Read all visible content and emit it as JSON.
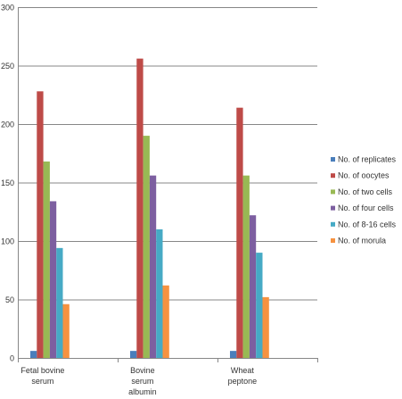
{
  "chart_data": {
    "type": "bar",
    "categories": [
      "Fetal bovine serum",
      "Bovine serum albumin",
      "Wheat peptone"
    ],
    "category_lines": [
      [
        "Fetal bovine",
        "serum"
      ],
      [
        "Bovine",
        "serum",
        "albumin"
      ],
      [
        "Wheat",
        "peptone"
      ]
    ],
    "series": [
      {
        "name": "No. of replicates",
        "color": "#4a7ebb",
        "values": [
          6,
          6,
          6
        ]
      },
      {
        "name": "No. of oocytes",
        "color": "#be4b48",
        "values": [
          228,
          256,
          214
        ]
      },
      {
        "name": "No. of two cells",
        "color": "#98b954",
        "values": [
          168,
          190,
          156
        ]
      },
      {
        "name": "No. of four cells",
        "color": "#7d5fa0",
        "values": [
          134,
          156,
          122
        ]
      },
      {
        "name": "No. of 8-16 cells",
        "color": "#46aac5",
        "values": [
          94,
          110,
          90
        ]
      },
      {
        "name": "No. of morula",
        "color": "#f69240",
        "values": [
          46,
          62,
          52
        ]
      }
    ],
    "ylim": [
      0,
      300
    ],
    "yticks": [
      0,
      50,
      100,
      150,
      200,
      250,
      300
    ],
    "grid": true,
    "legend_position": "right",
    "title": "",
    "xlabel": "",
    "ylabel": ""
  }
}
